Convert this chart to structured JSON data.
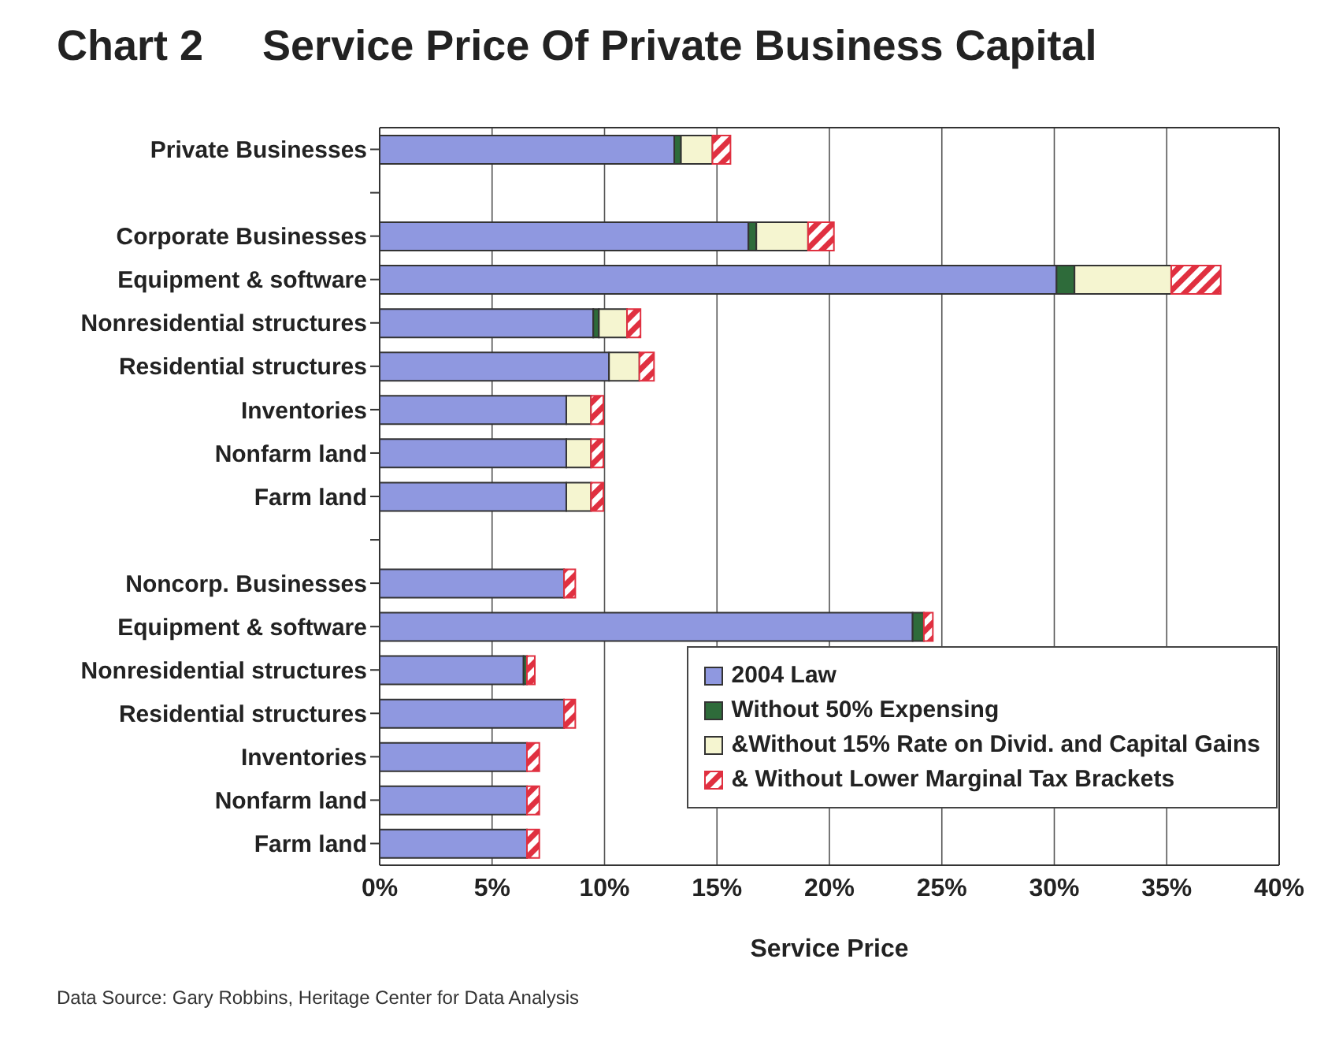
{
  "chart_data": {
    "type": "bar",
    "orientation": "horizontal",
    "stacked": true,
    "title": "Chart 2     Service Price Of Private Business Capital",
    "xlabel": "Service Price",
    "annotations": [
      "Data Source: Gary Robbins, Heritage Center for Data Analysis"
    ],
    "categories": [
      "Private Businesses",
      null,
      "Corporate Businesses",
      "Equipment & software",
      "Nonresidential structures",
      "Residential structures",
      "Inventories",
      "Nonfarm land",
      "Farm land",
      null,
      "Noncorp. Businesses",
      "Equipment & software",
      "Nonresidential structures",
      "Residential structures",
      "Inventories",
      "Nonfarm land",
      "Farm land"
    ],
    "series": [
      {
        "name": "2004 Law",
        "color": "#8f98e0",
        "values": [
          13.1,
          null,
          16.4,
          30.1,
          9.5,
          10.2,
          8.3,
          8.3,
          8.3,
          null,
          8.2,
          23.7,
          6.4,
          8.2,
          6.55,
          6.55,
          6.55
        ]
      },
      {
        "name": "Without 50% Expensing",
        "color": "#2e6b3a",
        "values": [
          0.3,
          null,
          0.35,
          0.8,
          0.25,
          0,
          0,
          0,
          0,
          null,
          0,
          0.5,
          0.15,
          0,
          0,
          0,
          0
        ]
      },
      {
        "name": "&Without 15% Rate on Divid. and Capital Gains",
        "color": "#f5f5d0",
        "values": [
          1.4,
          null,
          2.3,
          4.3,
          1.25,
          1.35,
          1.1,
          1.1,
          1.1,
          null,
          0,
          0,
          0,
          0,
          0,
          0,
          0
        ]
      },
      {
        "name": "& Without Lower Marginal Tax Brackets",
        "color": "#e03040",
        "values": [
          0.8,
          null,
          1.15,
          2.2,
          0.6,
          0.65,
          0.55,
          0.55,
          0.55,
          null,
          0.5,
          0.4,
          0.35,
          0.5,
          0.55,
          0.55,
          0.55
        ]
      }
    ],
    "xlim": [
      0,
      40
    ],
    "xticks": [
      {
        "value": 0,
        "label": "0%"
      },
      {
        "value": 5,
        "label": "5%"
      },
      {
        "value": 10,
        "label": "10%"
      },
      {
        "value": 15,
        "label": "15%"
      },
      {
        "value": 20,
        "label": "20%"
      },
      {
        "value": 25,
        "label": "25%"
      },
      {
        "value": 30,
        "label": "30%"
      },
      {
        "value": 35,
        "label": "35%"
      },
      {
        "value": 40,
        "label": "40%"
      }
    ],
    "grid": "x",
    "legend": "bottom right"
  }
}
